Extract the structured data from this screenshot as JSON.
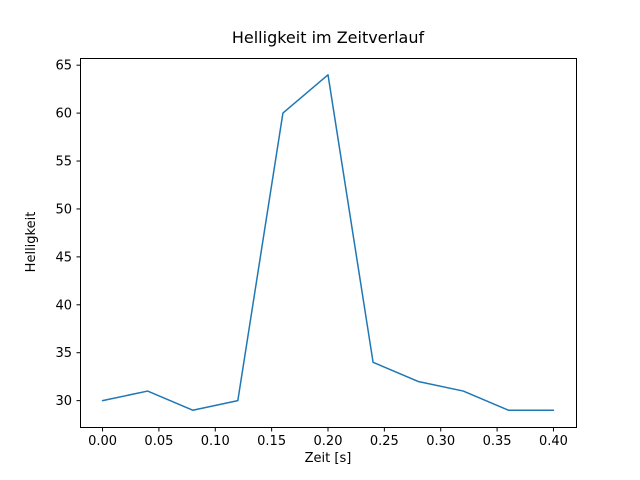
{
  "figure": {
    "title": "Helligkeit im Zeitverlauf",
    "xlabel": "Zeit [s]",
    "ylabel": "Helligkeit"
  },
  "chart_data": {
    "type": "line",
    "title": "Helligkeit im Zeitverlauf",
    "xlabel": "Zeit [s]",
    "ylabel": "Helligkeit",
    "x": [
      0.0,
      0.04,
      0.08,
      0.12,
      0.16,
      0.2,
      0.24,
      0.28,
      0.32,
      0.36,
      0.4
    ],
    "y": [
      30,
      31,
      29,
      30,
      60,
      64,
      34,
      32,
      31,
      29,
      29
    ],
    "xlim": [
      -0.02,
      0.42
    ],
    "ylim": [
      27.25,
      65.75
    ],
    "xticks": [
      0.0,
      0.05,
      0.1,
      0.15,
      0.2,
      0.25,
      0.3,
      0.35,
      0.4
    ],
    "yticks": [
      30,
      35,
      40,
      45,
      50,
      55,
      60,
      65
    ],
    "line_color": "#1f77b4",
    "axis_color": "#000000",
    "grid": false,
    "legend_position": "none"
  }
}
